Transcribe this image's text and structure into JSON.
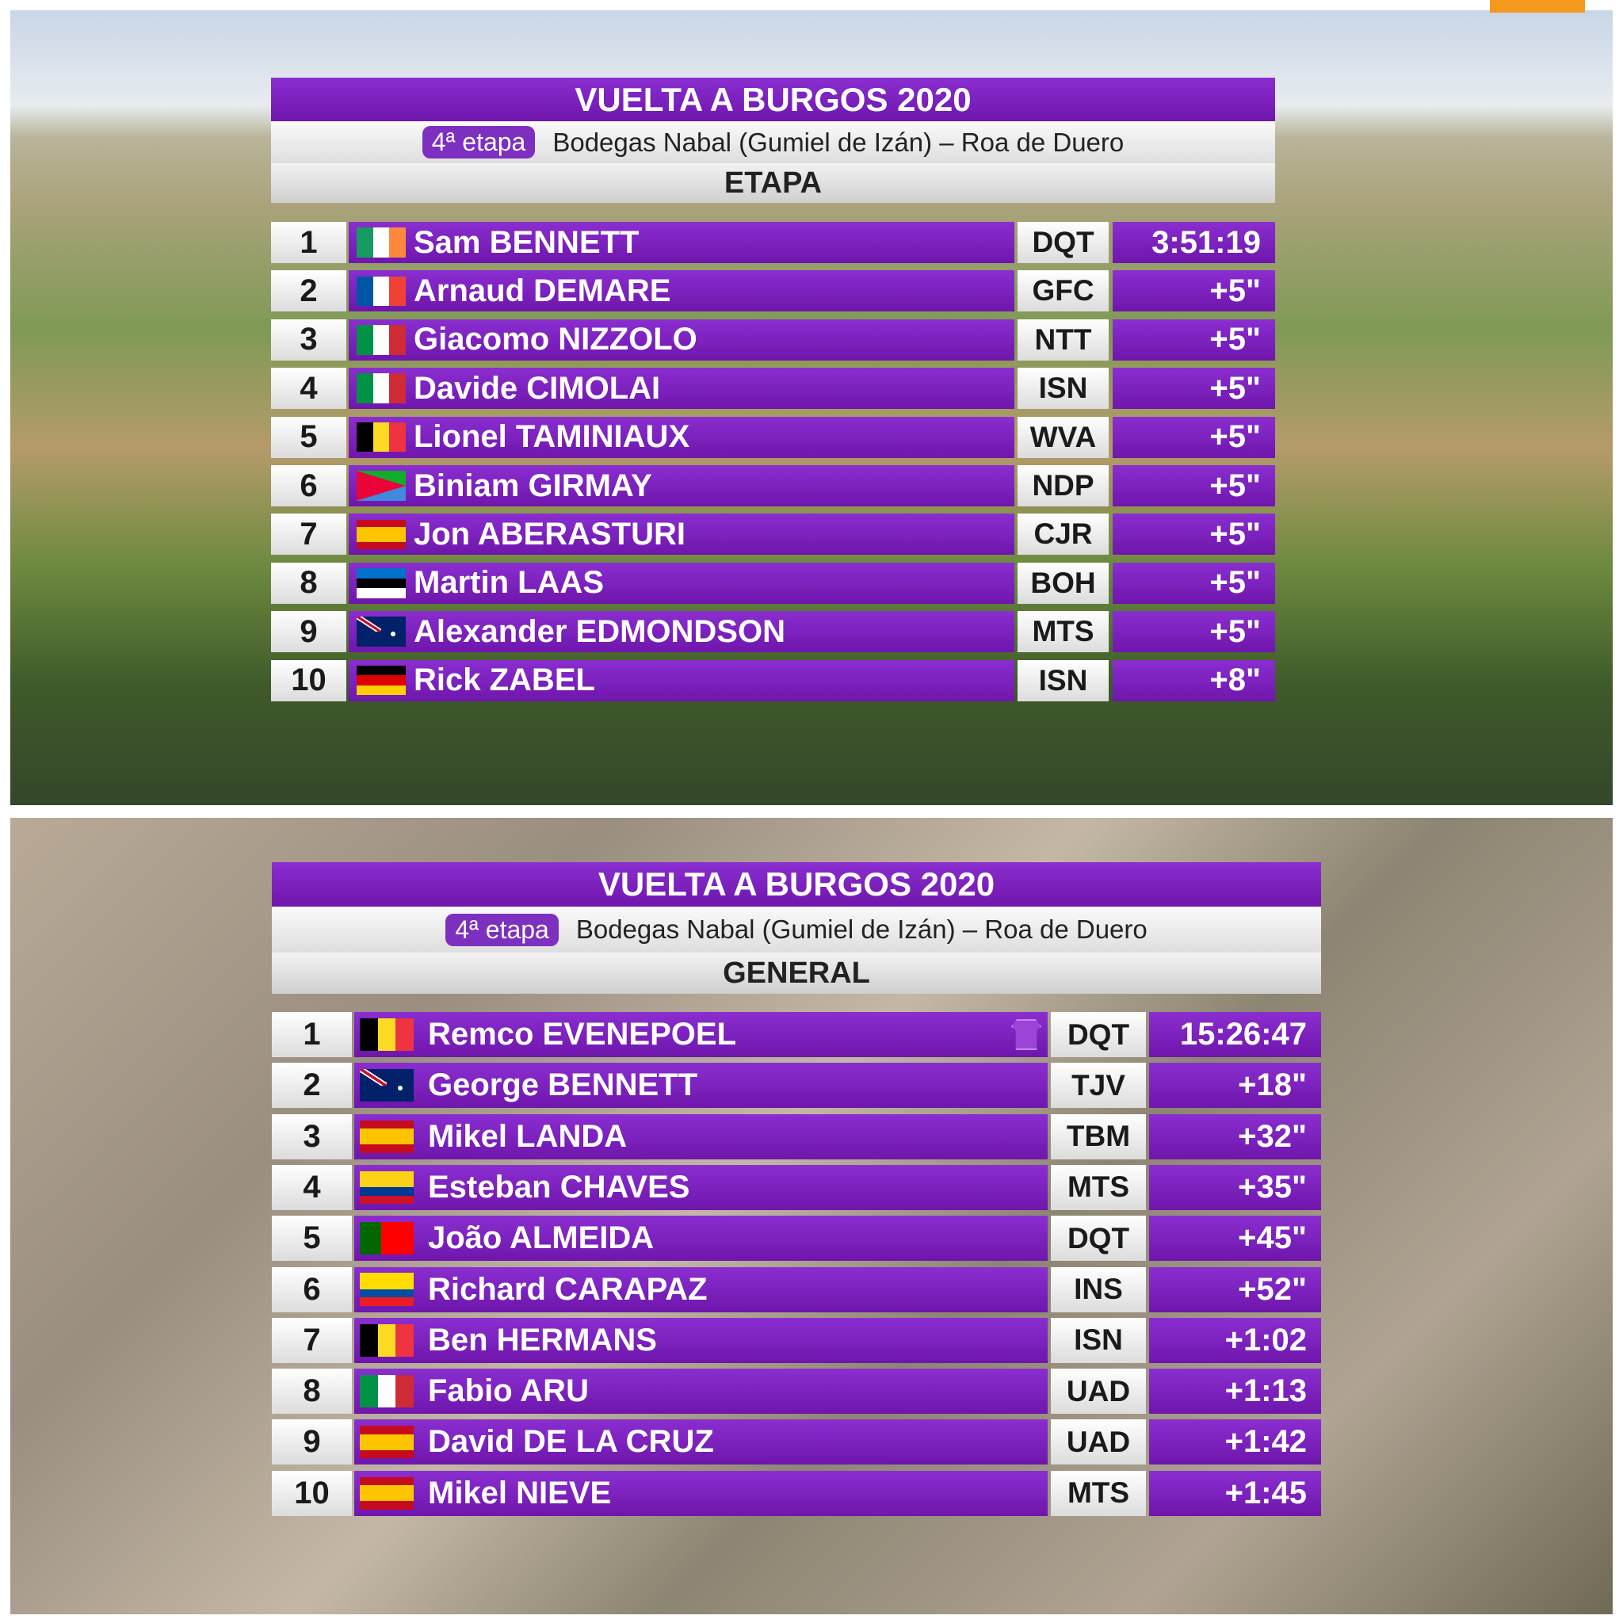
{
  "panels": [
    {
      "title": "VUELTA A BURGOS 2020",
      "stage_badge": "4ª etapa",
      "route": "Bodegas Nabal (Gumiel de Izán) – Roa de Duero",
      "section": "ETAPA",
      "rows": [
        {
          "rank": 1,
          "name": "Sam BENNETT",
          "team": "DQT",
          "time": "3:51:19"
        },
        {
          "rank": 2,
          "name": "Arnaud DEMARE",
          "team": "GFC",
          "time": "+5\""
        },
        {
          "rank": 3,
          "name": "Giacomo NIZZOLO",
          "team": "NTT",
          "time": "+5\""
        },
        {
          "rank": 4,
          "name": "Davide CIMOLAI",
          "team": "ISN",
          "time": "+5\""
        },
        {
          "rank": 5,
          "name": "Lionel TAMINIAUX",
          "team": "WVA",
          "time": "+5\""
        },
        {
          "rank": 6,
          "name": "Biniam GIRMAY",
          "team": "NDP",
          "time": "+5\""
        },
        {
          "rank": 7,
          "name": "Jon ABERASTURI",
          "team": "CJR",
          "time": "+5\""
        },
        {
          "rank": 8,
          "name": "Martin LAAS",
          "team": "BOH",
          "time": "+5\""
        },
        {
          "rank": 9,
          "name": "Alexander EDMONDSON",
          "team": "MTS",
          "time": "+5\""
        },
        {
          "rank": 10,
          "name": "Rick ZABEL",
          "team": "ISN",
          "time": "+8\""
        }
      ]
    },
    {
      "title": "VUELTA A BURGOS 2020",
      "stage_badge": "4ª etapa",
      "route": "Bodegas Nabal (Gumiel de Izán) – Roa de Duero",
      "section": "GENERAL",
      "rows": [
        {
          "rank": 1,
          "name": "Remco EVENEPOEL",
          "team": "DQT",
          "time": "15:26:47"
        },
        {
          "rank": 2,
          "name": "George BENNETT",
          "team": "TJV",
          "time": "+18\""
        },
        {
          "rank": 3,
          "name": "Mikel LANDA",
          "team": "TBM",
          "time": "+32\""
        },
        {
          "rank": 4,
          "name": "Esteban CHAVES",
          "team": "MTS",
          "time": "+35\""
        },
        {
          "rank": 5,
          "name": "João ALMEIDA",
          "team": "DQT",
          "time": "+45\""
        },
        {
          "rank": 6,
          "name": "Richard CARAPAZ",
          "team": "INS",
          "time": "+52\""
        },
        {
          "rank": 7,
          "name": "Ben HERMANS",
          "team": "ISN",
          "time": "+1:02"
        },
        {
          "rank": 8,
          "name": "Fabio ARU",
          "team": "UAD",
          "time": "+1:13"
        },
        {
          "rank": 9,
          "name": "David DE LA CRUZ",
          "team": "UAD",
          "time": "+1:42"
        },
        {
          "rank": 10,
          "name": "Mikel NIEVE",
          "team": "MTS",
          "time": "+1:45"
        }
      ]
    }
  ]
}
